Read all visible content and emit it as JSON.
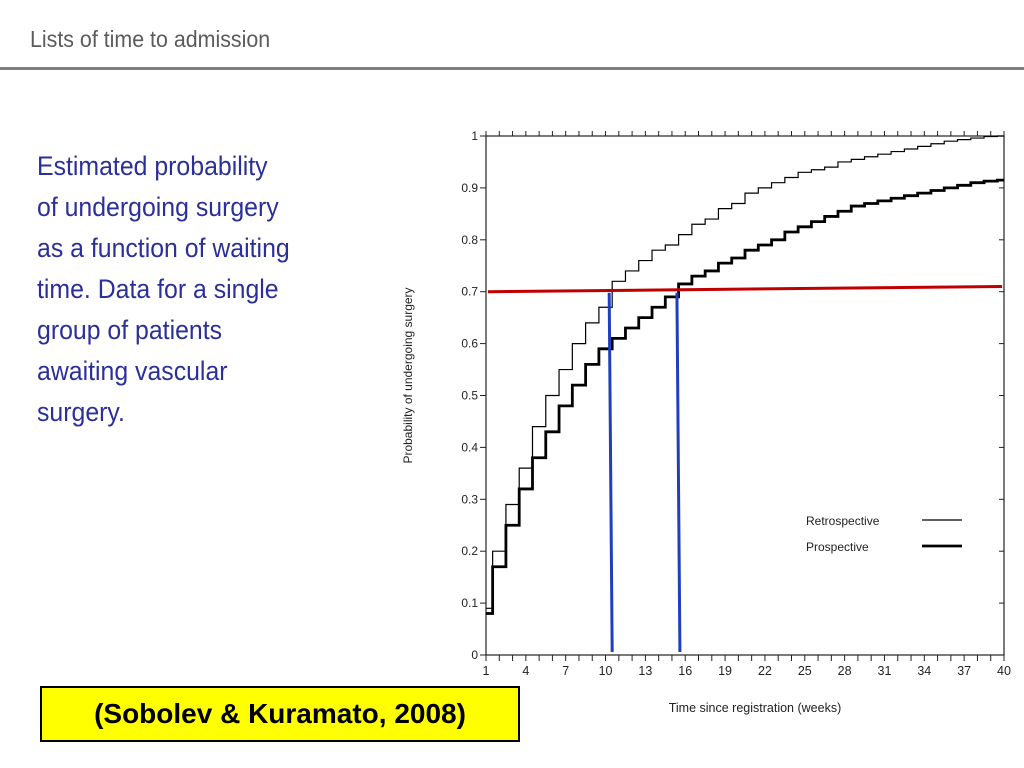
{
  "slide": {
    "title": "Lists of time to admission",
    "body_lines": [
      "Estimated probability",
      "of undergoing surgery",
      "as a function of waiting",
      "time. Data for a single",
      "group of patients",
      "awaiting vascular",
      "surgery."
    ],
    "citation": "(Sobolev & Kuramato, 2008)"
  },
  "chart_data": {
    "type": "line",
    "step": true,
    "xlabel": "Time  since  registration  (weeks)",
    "ylabel": "Probability  of  undergoing  surgery",
    "xlim": [
      1,
      40
    ],
    "ylim": [
      0,
      1
    ],
    "xticks": [
      1,
      4,
      7,
      10,
      13,
      16,
      19,
      22,
      25,
      28,
      31,
      34,
      37,
      40
    ],
    "yticks": [
      0,
      0.1,
      0.2,
      0.3,
      0.4,
      0.5,
      0.6,
      0.7,
      0.8,
      0.9,
      1
    ],
    "ytick_labels": [
      "0",
      "0.1",
      "0.2",
      "0.3",
      "0.4",
      "0.5",
      "0.6",
      "0.7",
      "0.8",
      "0.9",
      "1"
    ],
    "legend_position": "bottom-right",
    "series": [
      {
        "name": "Retrospective",
        "style": "thin",
        "color": "#000000",
        "x": [
          1,
          2,
          3,
          4,
          5,
          6,
          7,
          8,
          9,
          10,
          11,
          12,
          13,
          14,
          15,
          16,
          17,
          18,
          19,
          20,
          21,
          22,
          23,
          24,
          25,
          26,
          27,
          28,
          29,
          30,
          31,
          32,
          33,
          34,
          35,
          36,
          37,
          38,
          39,
          40
        ],
        "values": [
          0.09,
          0.2,
          0.29,
          0.36,
          0.44,
          0.5,
          0.55,
          0.6,
          0.64,
          0.67,
          0.72,
          0.74,
          0.76,
          0.78,
          0.79,
          0.81,
          0.83,
          0.84,
          0.86,
          0.87,
          0.89,
          0.9,
          0.91,
          0.92,
          0.93,
          0.935,
          0.94,
          0.95,
          0.955,
          0.96,
          0.965,
          0.97,
          0.975,
          0.98,
          0.985,
          0.99,
          0.993,
          0.996,
          0.999,
          1.0
        ]
      },
      {
        "name": "Prospective",
        "style": "thick",
        "color": "#000000",
        "x": [
          1,
          2,
          3,
          4,
          5,
          6,
          7,
          8,
          9,
          10,
          11,
          12,
          13,
          14,
          15,
          16,
          17,
          18,
          19,
          20,
          21,
          22,
          23,
          24,
          25,
          26,
          27,
          28,
          29,
          30,
          31,
          32,
          33,
          34,
          35,
          36,
          37,
          38,
          39,
          40
        ],
        "values": [
          0.08,
          0.17,
          0.25,
          0.32,
          0.38,
          0.43,
          0.48,
          0.52,
          0.56,
          0.59,
          0.61,
          0.63,
          0.65,
          0.67,
          0.69,
          0.715,
          0.73,
          0.74,
          0.755,
          0.765,
          0.78,
          0.79,
          0.8,
          0.815,
          0.825,
          0.835,
          0.845,
          0.855,
          0.865,
          0.87,
          0.875,
          0.88,
          0.885,
          0.89,
          0.895,
          0.9,
          0.905,
          0.91,
          0.913,
          0.915
        ]
      }
    ],
    "annotations": {
      "horizontal_line": {
        "y": 0.7,
        "color": "#c00000"
      },
      "vertical_lines": [
        {
          "x": 10.5,
          "color": "#1f3fbf"
        },
        {
          "x": 15.6,
          "color": "#1f3fbf"
        }
      ]
    }
  }
}
